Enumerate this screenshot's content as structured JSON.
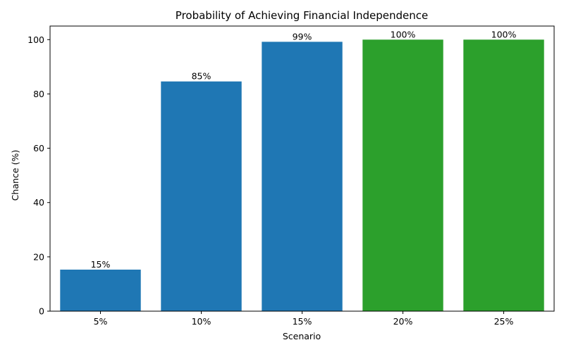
{
  "chart_data": {
    "type": "bar",
    "title": "Probability of Achieving Financial Independence",
    "xlabel": "Scenario",
    "ylabel": "Chance (%)",
    "categories": [
      "5%",
      "10%",
      "15%",
      "20%",
      "25%"
    ],
    "values": [
      15.3,
      84.6,
      99.2,
      100,
      100
    ],
    "data_labels": [
      "15%",
      "85%",
      "99%",
      "100%",
      "100%"
    ],
    "bar_colors": [
      "#1f77b4",
      "#1f77b4",
      "#1f77b4",
      "#2ca02c",
      "#2ca02c"
    ],
    "ylim": [
      0,
      105
    ],
    "yticks": [
      0,
      20,
      40,
      60,
      80,
      100
    ],
    "grid": false,
    "legend": null
  }
}
